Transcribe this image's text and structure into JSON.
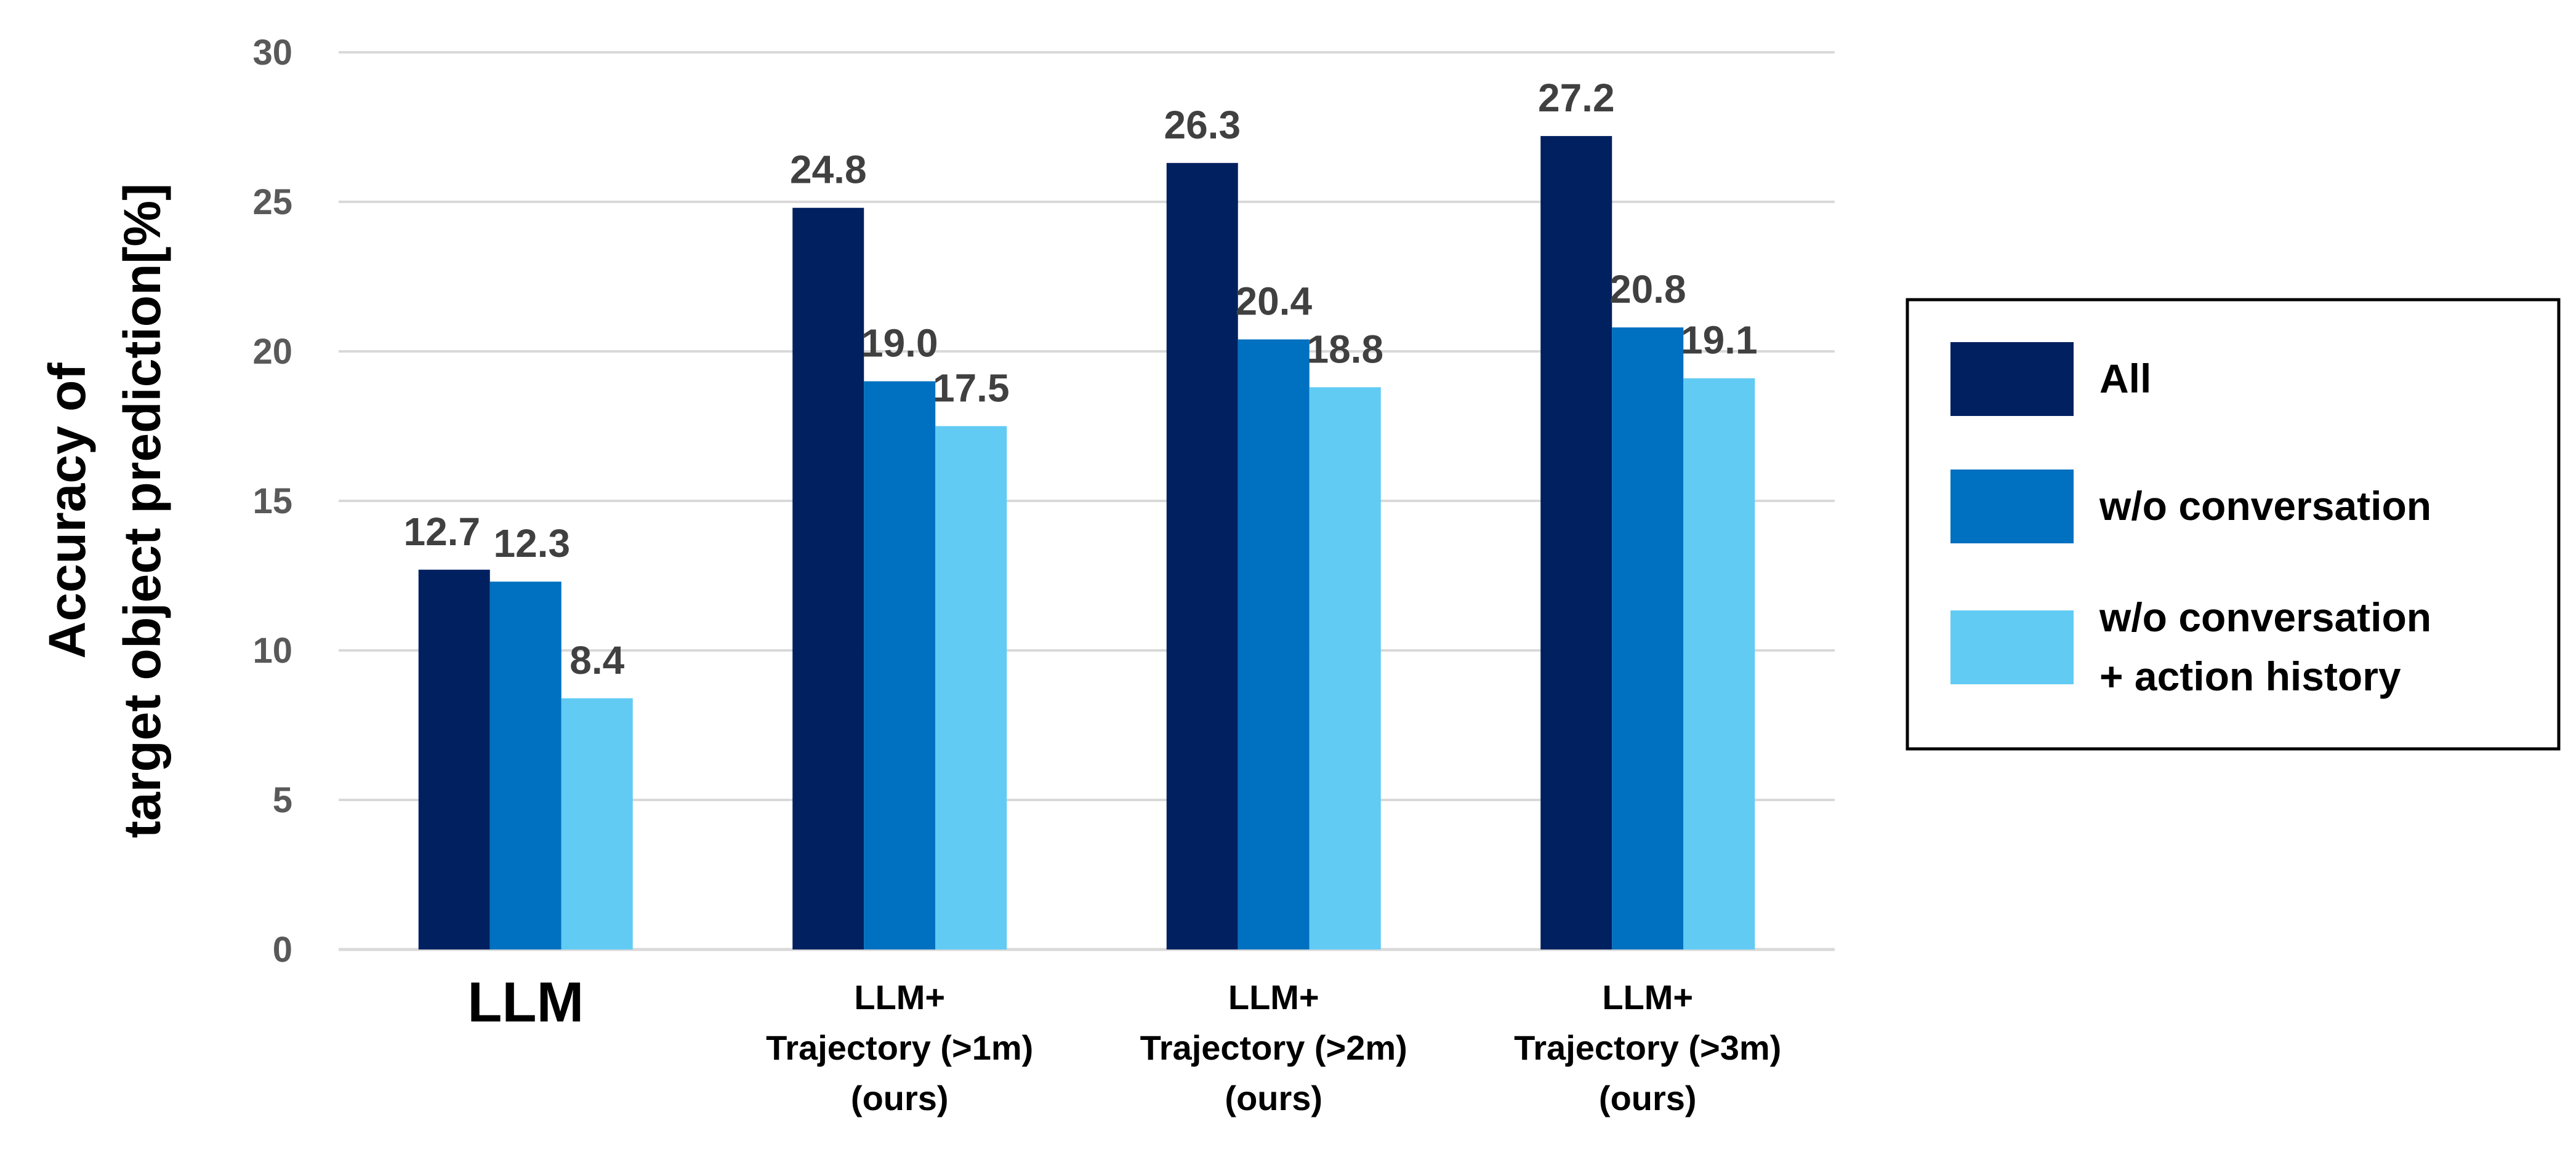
{
  "chart_data": {
    "type": "bar",
    "title": "",
    "ylabel": [
      "Accuracy of",
      "target object prediction[%]"
    ],
    "xlabel": "",
    "ylim": [
      0,
      30
    ],
    "yticks": [
      "0",
      "5",
      "10",
      "15",
      "20",
      "25",
      "30"
    ],
    "grid": true,
    "legend_position": "right",
    "categories": [
      {
        "lines": [
          "LLM"
        ],
        "emphasis": true
      },
      {
        "lines": [
          "LLM+",
          "Trajectory (>1m)",
          "(ours)"
        ],
        "emphasis": false
      },
      {
        "lines": [
          "LLM+",
          "Trajectory (>2m)",
          "(ours)"
        ],
        "emphasis": false
      },
      {
        "lines": [
          "LLM+",
          "Trajectory (>3m)",
          "(ours)"
        ],
        "emphasis": false
      }
    ],
    "series": [
      {
        "name": "All",
        "legend_lines": [
          "All"
        ],
        "color": "#002060",
        "values": [
          12.7,
          24.8,
          26.3,
          27.2
        ],
        "labels": [
          "12.7",
          "24.8",
          "26.3",
          "27.2"
        ]
      },
      {
        "name": "w/o conversation",
        "legend_lines": [
          "w/o conversation"
        ],
        "color": "#0070C0",
        "values": [
          12.3,
          19.0,
          20.4,
          20.8
        ],
        "labels": [
          "12.3",
          "19.0",
          "20.4",
          "20.8"
        ]
      },
      {
        "name": "w/o conversation + action history",
        "legend_lines": [
          "w/o conversation",
          "+ action history"
        ],
        "color": "#61CBF4",
        "values": [
          8.4,
          17.5,
          18.8,
          19.1
        ],
        "labels": [
          "8.4",
          "17.5",
          "18.8",
          "19.1"
        ]
      }
    ],
    "colors": {
      "grid": "#D9D9D9",
      "tick": "#595959",
      "data_label": "#404040"
    }
  }
}
